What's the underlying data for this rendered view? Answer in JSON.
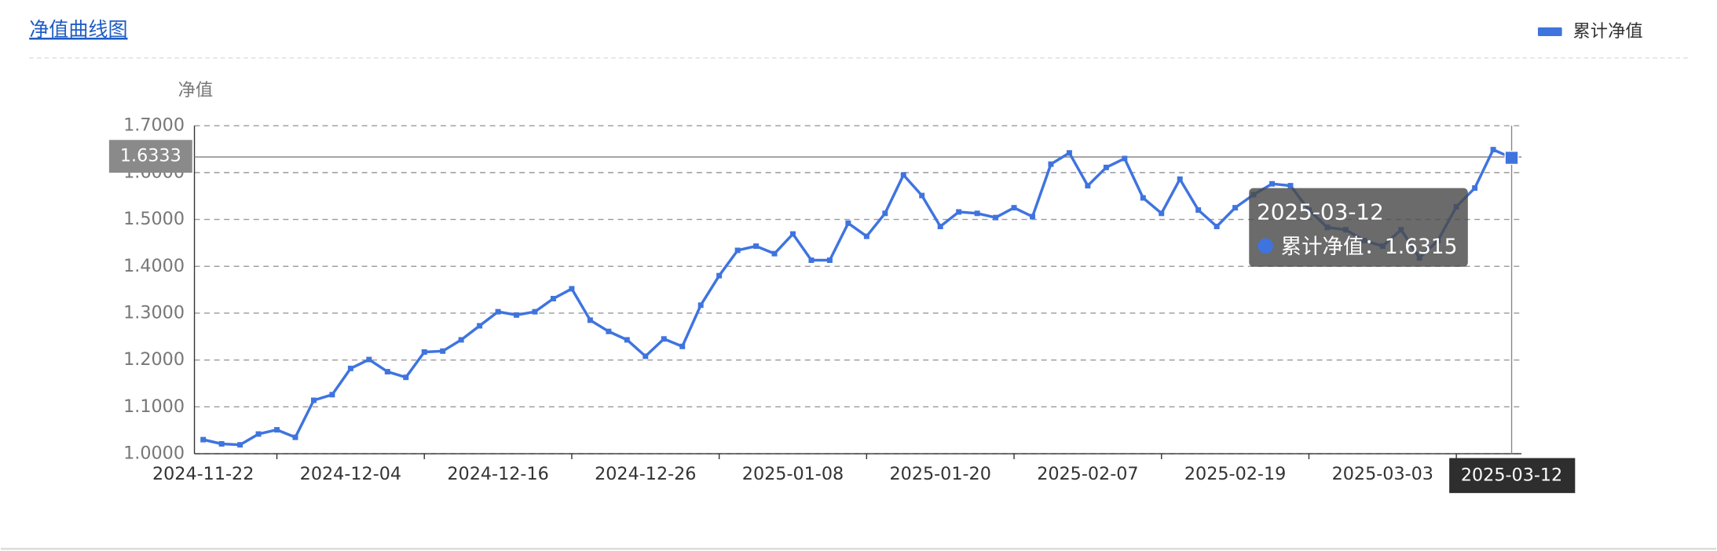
{
  "header": {
    "title": "净值曲线图"
  },
  "chart_data": {
    "type": "line",
    "y_axis_name": "净值",
    "categories": [
      "2024-11-22",
      null,
      null,
      null,
      null,
      null,
      null,
      null,
      "2024-12-04",
      null,
      null,
      null,
      null,
      null,
      null,
      null,
      "2024-12-16",
      null,
      null,
      null,
      null,
      null,
      null,
      null,
      "2024-12-26",
      null,
      null,
      null,
      null,
      null,
      null,
      null,
      "2025-01-08",
      null,
      null,
      null,
      null,
      null,
      null,
      null,
      "2025-01-20",
      null,
      null,
      null,
      null,
      null,
      null,
      null,
      "2025-02-07",
      null,
      null,
      null,
      null,
      null,
      null,
      null,
      "2025-02-19",
      null,
      null,
      null,
      null,
      null,
      null,
      null,
      "2025-03-03",
      null,
      null,
      null,
      null,
      null,
      null,
      null
    ],
    "series": [
      {
        "name": "累计净值",
        "color": "#3f74df",
        "values": [
          1.03,
          1.021,
          1.019,
          1.042,
          1.051,
          1.035,
          1.114,
          1.126,
          1.182,
          1.201,
          1.175,
          1.163,
          1.217,
          1.219,
          1.243,
          1.273,
          1.303,
          1.296,
          1.303,
          1.331,
          1.352,
          1.285,
          1.261,
          1.243,
          1.208,
          1.245,
          1.229,
          1.317,
          1.38,
          1.434,
          1.443,
          1.427,
          1.469,
          1.413,
          1.413,
          1.492,
          1.464,
          1.513,
          1.595,
          1.551,
          1.485,
          1.516,
          1.513,
          1.504,
          1.525,
          1.506,
          1.618,
          1.642,
          1.572,
          1.611,
          1.63,
          1.546,
          1.513,
          1.586,
          1.52,
          1.485,
          1.525,
          1.553,
          1.576,
          1.572,
          1.52,
          1.483,
          1.478,
          1.455,
          1.443,
          1.478,
          1.418,
          1.455,
          1.527,
          1.567,
          1.649,
          1.6315
        ]
      }
    ],
    "ylim": [
      1.0,
      1.7
    ],
    "yticks": [
      {
        "value": 1.0,
        "label": "1.0000"
      },
      {
        "value": 1.1,
        "label": "1.1000"
      },
      {
        "value": 1.2,
        "label": "1.2000"
      },
      {
        "value": 1.3,
        "label": "1.3000"
      },
      {
        "value": 1.4,
        "label": "1.4000"
      },
      {
        "value": 1.5,
        "label": "1.5000"
      },
      {
        "value": 1.6,
        "label": "1.6000"
      },
      {
        "value": 1.7,
        "label": "1.7000"
      }
    ],
    "grid": true,
    "legend": "top-right",
    "crosshair": {
      "x_label": "2025-03-12",
      "y_label": 1.6333
    },
    "tooltip": {
      "date": "2025-03-12",
      "series_label": "累计净值：",
      "value": 1.6315
    }
  }
}
